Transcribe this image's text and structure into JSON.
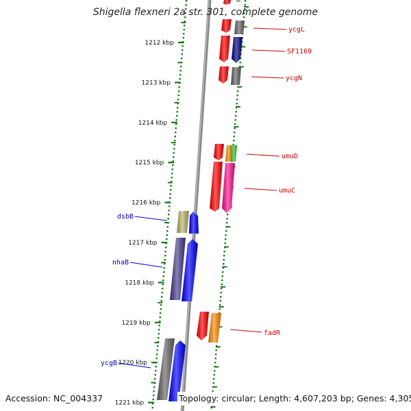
{
  "title": "Shigella flexneri 2a str. 301, complete genome",
  "footer": {
    "accession": "Accession: NC_004337",
    "topology": "Topology: circular; Length: 4,607,203 bp; Genes: 4,305"
  },
  "colors": {
    "forward_label": "#cc0000",
    "reverse_label": "#0000cc",
    "tick": "#1a7a1a",
    "backbone": "#888888"
  },
  "kbp_markers": [
    {
      "label": "1212 kbp",
      "kbp": 1212
    },
    {
      "label": "1213 kbp",
      "kbp": 1213
    },
    {
      "label": "1214 kbp",
      "kbp": 1214
    },
    {
      "label": "1215 kbp",
      "kbp": 1215
    },
    {
      "label": "1216 kbp",
      "kbp": 1216
    },
    {
      "label": "1217 kbp",
      "kbp": 1217
    },
    {
      "label": "1218 kbp",
      "kbp": 1218
    },
    {
      "label": "1219 kbp",
      "kbp": 1219
    },
    {
      "label": "1220 kbp",
      "kbp": 1220
    },
    {
      "label": "1221 kbp",
      "kbp": 1221
    }
  ],
  "gene_labels": [
    {
      "name": "ycgL",
      "strand": "forward"
    },
    {
      "name": "SF1169",
      "strand": "forward"
    },
    {
      "name": "ycgN",
      "strand": "forward"
    },
    {
      "name": "umuD",
      "strand": "forward"
    },
    {
      "name": "umuC",
      "strand": "forward"
    },
    {
      "name": "fadR",
      "strand": "forward"
    },
    {
      "name": "dsbB",
      "strand": "reverse"
    },
    {
      "name": "nhaB",
      "strand": "reverse"
    },
    {
      "name": "ycgB",
      "strand": "reverse"
    }
  ]
}
